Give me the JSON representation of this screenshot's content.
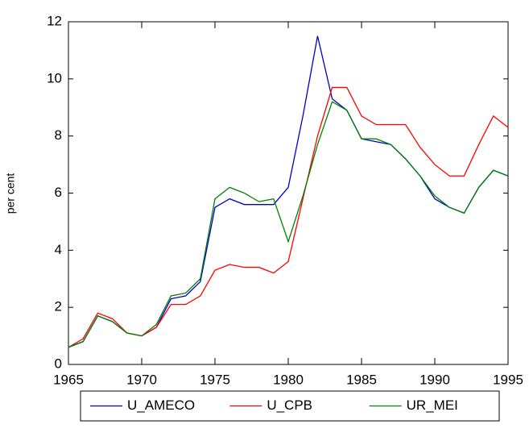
{
  "chart_data": {
    "type": "line",
    "y_label": "per cent",
    "x": [
      1965,
      1966,
      1967,
      1968,
      1969,
      1970,
      1971,
      1972,
      1973,
      1974,
      1975,
      1976,
      1977,
      1978,
      1979,
      1980,
      1981,
      1982,
      1983,
      1984,
      1985,
      1986,
      1987,
      1988,
      1989,
      1990,
      1991,
      1992,
      1993,
      1994,
      1995
    ],
    "series": [
      {
        "name": "U_AMECO",
        "color": "#0000cc",
        "values": [
          0.6,
          0.8,
          1.7,
          1.5,
          1.1,
          1.0,
          1.3,
          2.3,
          2.4,
          2.9,
          5.5,
          5.8,
          5.6,
          5.6,
          5.6,
          6.2,
          8.7,
          11.5,
          9.3,
          8.9,
          7.9,
          7.8,
          7.7,
          7.2,
          6.6,
          5.8,
          5.5,
          5.3,
          6.2,
          6.8,
          6.6
        ]
      },
      {
        "name": "U_CPB",
        "color": "#ff0000",
        "values": [
          0.6,
          0.9,
          1.8,
          1.6,
          1.1,
          1.0,
          1.3,
          2.1,
          2.1,
          2.4,
          3.3,
          3.5,
          3.4,
          3.4,
          3.2,
          3.6,
          5.8,
          8.0,
          9.7,
          9.7,
          8.7,
          8.4,
          8.4,
          8.4,
          7.6,
          7.0,
          6.6,
          6.6,
          7.7,
          8.7,
          8.3
        ]
      },
      {
        "name": "UR_MEI",
        "color": "#008000",
        "values": [
          0.6,
          0.8,
          1.7,
          1.5,
          1.1,
          1.0,
          1.4,
          2.4,
          2.5,
          3.0,
          5.8,
          6.2,
          6.0,
          5.7,
          5.8,
          4.3,
          5.9,
          7.7,
          9.2,
          8.9,
          7.9,
          7.9,
          7.7,
          7.2,
          6.6,
          5.9,
          5.5,
          5.3,
          6.2,
          6.8,
          6.6
        ]
      }
    ],
    "xlim": [
      1965,
      1995
    ],
    "xticks": [
      1965,
      1970,
      1975,
      1980,
      1985,
      1990,
      1995
    ],
    "ylim": [
      0,
      12
    ],
    "yticks": [
      0,
      2,
      4,
      6,
      8,
      10,
      12
    ],
    "legend": "bottom"
  }
}
